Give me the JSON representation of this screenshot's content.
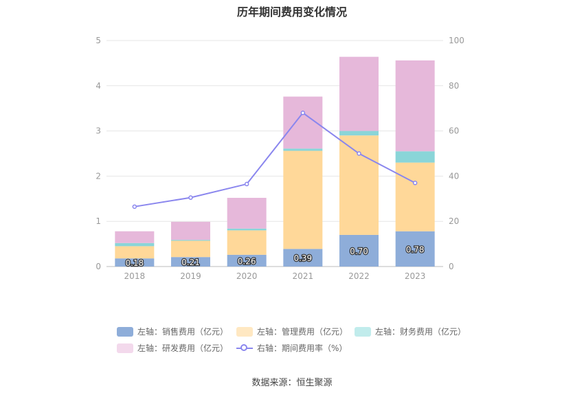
{
  "chart_data": {
    "type": "bar",
    "title": "历年期间费用变化情况",
    "categories": [
      "2018",
      "2019",
      "2020",
      "2021",
      "2022",
      "2023"
    ],
    "stacked": true,
    "left_axis": {
      "ylim": [
        0,
        5
      ],
      "ticks": [
        "0",
        "1",
        "2",
        "3",
        "4",
        "5"
      ]
    },
    "right_axis": {
      "ylim": [
        0,
        100
      ],
      "ticks": [
        "0",
        "20",
        "40",
        "60",
        "80",
        "100"
      ]
    },
    "series": [
      {
        "name": "左轴：销售费用（亿元）",
        "type": "bar",
        "axis": "left",
        "color": "#8eadd9",
        "values": [
          0.18,
          0.21,
          0.26,
          0.39,
          0.7,
          0.78
        ],
        "labels": [
          "0.18",
          "0.21",
          "0.26",
          "0.39",
          "0.70",
          "0.78"
        ]
      },
      {
        "name": "左轴：管理费用（亿元）",
        "type": "bar",
        "axis": "left",
        "color": "#ffd899",
        "values": [
          0.27,
          0.36,
          0.54,
          2.17,
          2.2,
          1.52
        ]
      },
      {
        "name": "左轴：财务费用（亿元）",
        "type": "bar",
        "axis": "left",
        "color": "#8ad5d8",
        "values": [
          0.07,
          0.02,
          0.04,
          0.05,
          0.1,
          0.25
        ]
      },
      {
        "name": "左轴：研发费用（亿元）",
        "type": "bar",
        "axis": "left",
        "color": "#e6b8da",
        "values": [
          0.26,
          0.4,
          0.68,
          1.15,
          1.64,
          2.01
        ]
      },
      {
        "name": "右轴：期间费用率（%）",
        "type": "line",
        "axis": "right",
        "color": "#8a86ee",
        "values": [
          26.5,
          30.5,
          36.5,
          68.0,
          50.0,
          37.0
        ]
      }
    ],
    "legend_position": "bottom",
    "grid": true
  },
  "legend": [
    {
      "label": "左轴：销售费用（亿元）",
      "color": "#8eadd9",
      "kind": "box"
    },
    {
      "label": "左轴：管理费用（亿元）",
      "color": "#ffe8c2",
      "kind": "box"
    },
    {
      "label": "左轴：财务费用（亿元）",
      "color": "#c1ecec",
      "kind": "box"
    },
    {
      "label": "左轴：研发费用（亿元）",
      "color": "#f3d9ec",
      "kind": "box"
    },
    {
      "label": "右轴：期间费用率（%）",
      "color": "#8a86ee",
      "kind": "line"
    }
  ],
  "source": "数据来源：恒生聚源"
}
